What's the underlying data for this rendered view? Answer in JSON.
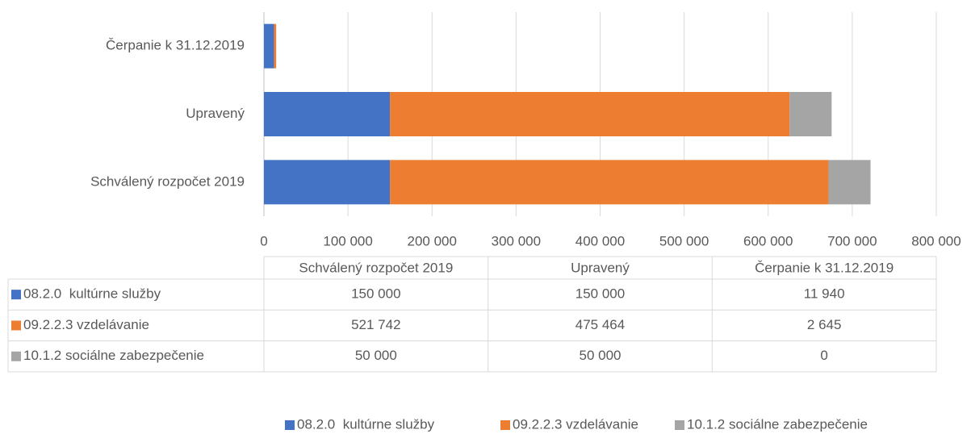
{
  "chart_data": {
    "type": "stacked-bar-horizontal",
    "categories": [
      "Schválený rozpočet 2019",
      "Upravený",
      "Čerpanie k 31.12.2019"
    ],
    "series": [
      {
        "name": "08.2.0  kultúrne služby",
        "color": "#4472c4",
        "values": [
          150000,
          150000,
          11940
        ],
        "value_labels": [
          "150 000",
          "150 000",
          "11 940"
        ]
      },
      {
        "name": "09.2.2.3 vzdelávanie",
        "color": "#ed7d31",
        "values": [
          521742,
          475464,
          2645
        ],
        "value_labels": [
          "521 742",
          "475 464",
          "2 645"
        ]
      },
      {
        "name": "10.1.2 sociálne zabezpečenie",
        "color": "#a5a5a5",
        "values": [
          50000,
          50000,
          0
        ],
        "value_labels": [
          "50 000",
          "50 000",
          "0"
        ]
      }
    ],
    "xlim": [
      0,
      800000
    ],
    "xticks": [
      0,
      {
        "value": 100000,
        "label": "100 000"
      },
      {
        "value": 200000,
        "label": "200 000"
      },
      {
        "value": 300000,
        "label": "300 000"
      },
      {
        "value": 400000,
        "label": "400 000"
      },
      {
        "value": 500000,
        "label": "500 000"
      },
      {
        "value": 600000,
        "label": "600 000"
      },
      {
        "value": 700000,
        "label": "700 000"
      },
      {
        "value": 800000,
        "label": "800 000"
      }
    ],
    "grid": true,
    "data_table": true,
    "legend": "bottom"
  }
}
